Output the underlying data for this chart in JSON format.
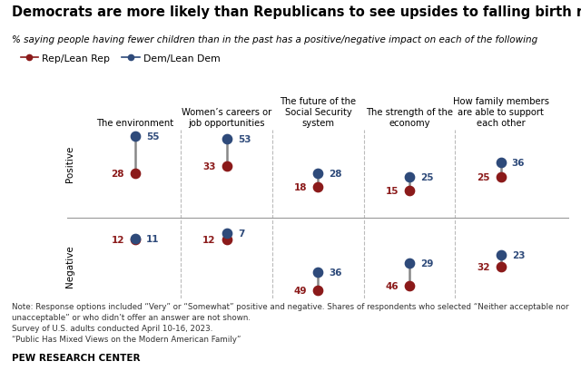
{
  "title": "Democrats are more likely than Republicans to see upsides to falling birth rate",
  "subtitle": "% saying people having fewer children than in the past has a positive/negative impact on each of the following",
  "categories": [
    "The environment",
    "Women’s careers or\njob opportunities",
    "The future of the\nSocial Security\nsystem",
    "The strength of the\neconomy",
    "How family members\nare able to support\neach other"
  ],
  "rep_color": "#8B1A1A",
  "dem_color": "#2E4A7A",
  "positive": {
    "rep": [
      28,
      33,
      18,
      15,
      25
    ],
    "dem": [
      55,
      53,
      28,
      25,
      36
    ]
  },
  "negative": {
    "rep": [
      12,
      12,
      49,
      46,
      32
    ],
    "dem": [
      11,
      7,
      36,
      29,
      23
    ]
  },
  "note1": "Note: Response options included “Very” or “Somewhat” positive and negative. Shares of respondents who selected “Neither acceptable nor",
  "note2": "unacceptable” or who didn’t offer an answer are not shown.",
  "note3": "Survey of U.S. adults conducted April 10-16, 2023.",
  "note4": "“Public Has Mixed Views on the Modern American Family”",
  "source": "PEW RESEARCH CENTER",
  "bg_color": "#FFFFFF",
  "dot_size": 55,
  "line_width": 1.8,
  "sep_color": "#BBBBBB",
  "center_line_color": "#999999"
}
